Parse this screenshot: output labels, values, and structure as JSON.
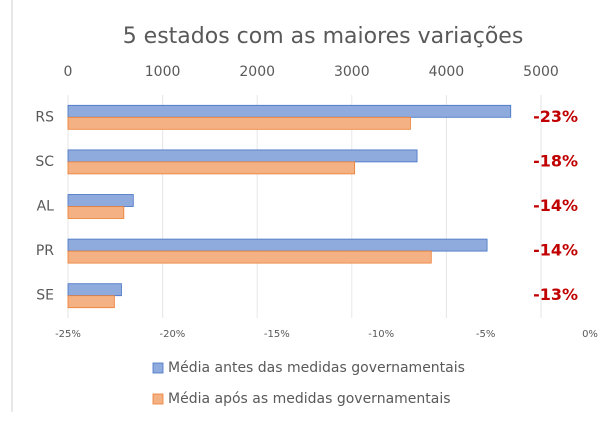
{
  "chart_data": {
    "type": "bar",
    "orientation": "horizontal",
    "title": "5 estados com as maiores variações",
    "categories": [
      "RS",
      "SC",
      "AL",
      "PR",
      "SE"
    ],
    "series": [
      {
        "name": "Média antes das medidas governamentais",
        "color": "#8faadc",
        "values": [
          4680,
          3690,
          690,
          4430,
          565
        ]
      },
      {
        "name": "Média após as medidas governamentais",
        "color": "#f4b183",
        "values": [
          3620,
          3030,
          590,
          3840,
          490
        ]
      }
    ],
    "xlim": [
      0,
      5000
    ],
    "xticks": [
      0,
      1000,
      2000,
      3000,
      4000,
      5000
    ],
    "x2lim": [
      -25,
      0
    ],
    "x2ticks": [
      {
        "value": -25,
        "label": "-25%"
      },
      {
        "value": -20,
        "label": "-20%"
      },
      {
        "value": -15,
        "label": "-15%"
      },
      {
        "value": -10,
        "label": "-10%"
      },
      {
        "value": -5,
        "label": "-5%"
      },
      {
        "value": 0,
        "label": "0%"
      }
    ],
    "change": {
      "values": [
        -23,
        -18,
        -14,
        -14,
        -13
      ],
      "value_labels": [
        "-23%",
        "-18%",
        "-14%",
        "-14%",
        "-13%"
      ],
      "color": "#c00000"
    },
    "grid": true,
    "legend": "bottom"
  }
}
